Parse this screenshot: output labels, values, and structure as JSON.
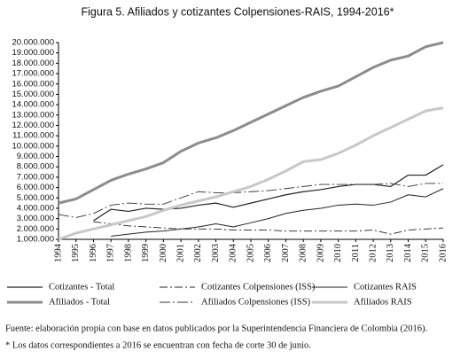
{
  "chart_data": {
    "type": "line",
    "title": "Figura 5. Afiliados y cotizantes Colpensiones-RAIS, 1994-2016*",
    "x": [
      1994,
      1995,
      1996,
      1997,
      1998,
      1999,
      2000,
      2001,
      2002,
      2003,
      2004,
      2005,
      2006,
      2007,
      2008,
      2009,
      2010,
      2011,
      2012,
      2013,
      2014,
      2015,
      2016
    ],
    "xlim": [
      1994,
      2016
    ],
    "xticks": [
      1994,
      1995,
      1996,
      1997,
      1998,
      1999,
      2000,
      2001,
      2002,
      2003,
      2004,
      2005,
      2006,
      2007,
      2008,
      2009,
      2010,
      2011,
      2012,
      2013,
      2014,
      2015,
      2016
    ],
    "ylim": [
      1000000,
      20000000
    ],
    "yticks": [
      {
        "value": 1000000,
        "label": "1.000.000"
      },
      {
        "value": 2000000,
        "label": "2.000.000"
      },
      {
        "value": 3000000,
        "label": "3.000.000"
      },
      {
        "value": 4000000,
        "label": "4.000.000"
      },
      {
        "value": 5000000,
        "label": "5.000.000"
      },
      {
        "value": 6000000,
        "label": "6.000.000"
      },
      {
        "value": 7000000,
        "label": "7.000.000"
      },
      {
        "value": 8000000,
        "label": "8.000.000"
      },
      {
        "value": 9000000,
        "label": "9.000.000"
      },
      {
        "value": 10000000,
        "label": "10.000.000"
      },
      {
        "value": 11000000,
        "label": "11.000.000"
      },
      {
        "value": 12000000,
        "label": "12.000.000"
      },
      {
        "value": 13000000,
        "label": "13.000.000"
      },
      {
        "value": 14000000,
        "label": "14.000.000"
      },
      {
        "value": 15000000,
        "label": "15.000.000"
      },
      {
        "value": 16000000,
        "label": "16.000.000"
      },
      {
        "value": 17000000,
        "label": "17.000.000"
      },
      {
        "value": 18000000,
        "label": "18.000.000"
      },
      {
        "value": 19000000,
        "label": "19.000.000"
      },
      {
        "value": 20000000,
        "label": "20.000.000"
      }
    ],
    "grid": false,
    "series": [
      {
        "name": "Cotizantes - Total",
        "color": "#222222",
        "width": 1.2,
        "dash": "none",
        "values": [
          null,
          null,
          2800000,
          3900000,
          3700000,
          4000000,
          3900000,
          4000000,
          4300000,
          4500000,
          4100000,
          4500000,
          4900000,
          5300000,
          5600000,
          5800000,
          6100000,
          6300000,
          6300000,
          6100000,
          7200000,
          7200000,
          8200000
        ]
      },
      {
        "name": "Afiliados - Total",
        "color": "#8c8c8c",
        "width": 3,
        "dash": "none",
        "values": [
          4500000,
          4900000,
          5800000,
          6700000,
          7300000,
          7800000,
          8400000,
          9500000,
          10300000,
          10800000,
          11500000,
          12300000,
          13100000,
          13900000,
          14700000,
          15300000,
          15800000,
          16700000,
          17600000,
          18300000,
          18700000,
          19600000,
          20000000
        ]
      },
      {
        "name": "Cotizantes Colpensiones (ISS)",
        "color": "#222222",
        "width": 0.9,
        "dash": "9 3 2 3",
        "values": [
          null,
          null,
          2700000,
          2500000,
          2300000,
          2200000,
          2100000,
          2000000,
          2000000,
          2000000,
          1900000,
          1900000,
          1900000,
          1800000,
          1800000,
          1800000,
          1800000,
          1800000,
          1900000,
          1500000,
          1900000,
          2000000,
          2100000
        ]
      },
      {
        "name": "Afiliados Colpensiones (ISS)",
        "color": "#333333",
        "width": 0.9,
        "dash": "12 3 2 3",
        "values": [
          3400000,
          3100000,
          3500000,
          4300000,
          4500000,
          4400000,
          4400000,
          5000000,
          5600000,
          5500000,
          5500000,
          5600000,
          5700000,
          5900000,
          6100000,
          6300000,
          6300000,
          6300000,
          6300000,
          6400000,
          6100000,
          6400000,
          6400000
        ]
      },
      {
        "name": "Cotizantes RAIS",
        "color": "#222222",
        "width": 1,
        "dash": "none",
        "values": [
          null,
          null,
          null,
          1300000,
          1500000,
          1700000,
          1800000,
          2000000,
          2200000,
          2500000,
          2200000,
          2600000,
          3000000,
          3500000,
          3800000,
          4000000,
          4300000,
          4400000,
          4300000,
          4600000,
          5300000,
          5100000,
          5900000
        ]
      },
      {
        "name": "Afiliados RAIS",
        "color": "#c8c8c8",
        "width": 3,
        "dash": "none",
        "values": [
          1000000,
          1600000,
          2000000,
          2400000,
          2800000,
          3200000,
          3800000,
          4300000,
          4700000,
          5100000,
          5600000,
          6100000,
          6800000,
          7600000,
          8500000,
          8700000,
          9300000,
          10100000,
          11000000,
          11800000,
          12600000,
          13400000,
          13700000
        ]
      }
    ],
    "notes": [
      "Fuente: elaboración propia con base en datos publicados por la Superintendencia Financiera de Colombia (2016).",
      "* Los datos correspondientes a 2016 se encuentran con fecha de corte 30 de junio."
    ]
  }
}
